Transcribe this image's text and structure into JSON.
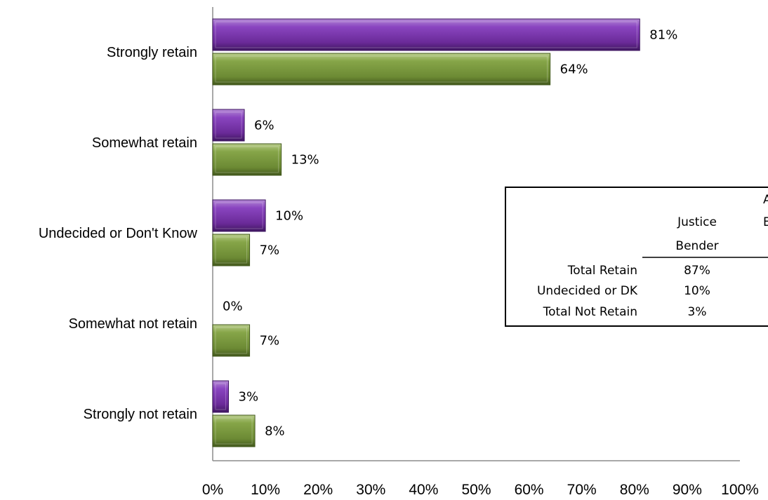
{
  "colors": {
    "series_purple": "#7030A0",
    "series_green": "#76923C"
  },
  "chart_data": {
    "type": "bar",
    "orientation": "horizontal",
    "categories": [
      "Strongly retain",
      "Somewhat retain",
      "Undecided or Don't Know",
      "Somewhat not retain",
      "Strongly not retain"
    ],
    "series": [
      {
        "values": [
          81,
          6,
          10,
          0,
          3
        ],
        "labels": [
          "81%",
          "6%",
          "10%",
          "0%",
          "3%"
        ],
        "color": "#7030A0"
      },
      {
        "values": [
          64,
          13,
          7,
          7,
          8
        ],
        "labels": [
          "64%",
          "13%",
          "7%",
          "7%",
          "8%"
        ],
        "color": "#76923C"
      }
    ],
    "xlim": [
      0,
      100
    ],
    "x_ticks": [
      "0%",
      "10%",
      "20%",
      "30%",
      "40%",
      "50%",
      "60%",
      "70%",
      "80%",
      "90%",
      "100%"
    ],
    "grid": false,
    "xlabel": "",
    "ylabel": ""
  },
  "summary_table": {
    "column_header": [
      "Justice",
      "Bender"
    ],
    "clipped_header_fragments": [
      "A",
      "E"
    ],
    "rows": [
      {
        "label": "Total Retain",
        "value": "87%"
      },
      {
        "label": "Undecided or DK",
        "value": "10%"
      },
      {
        "label": "Total Not Retain",
        "value": "3%"
      }
    ]
  }
}
